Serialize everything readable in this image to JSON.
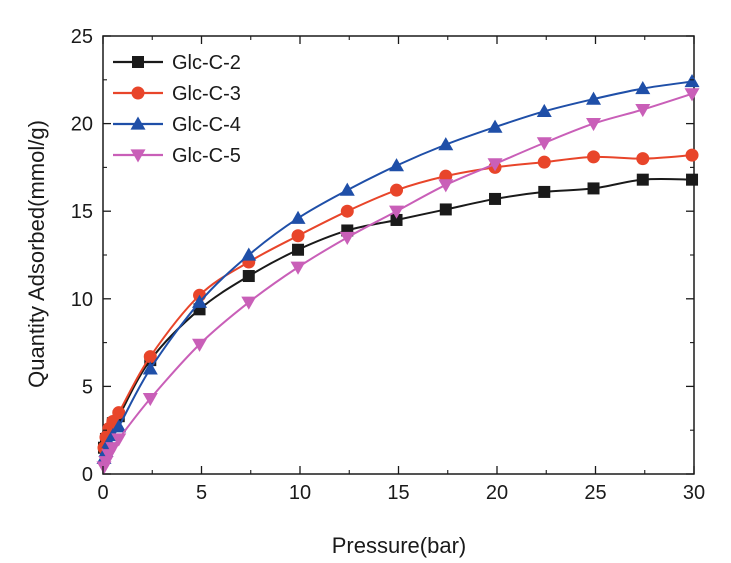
{
  "chart_data": {
    "type": "line",
    "title": "",
    "xlabel": "Pressure(bar)",
    "ylabel": "Quantity Adsorbed(mmol/g)",
    "xlim": [
      0,
      30
    ],
    "ylim": [
      0,
      25
    ],
    "xticks": [
      0,
      5,
      10,
      15,
      20,
      25,
      30
    ],
    "yticks": [
      0,
      5,
      10,
      15,
      20,
      25
    ],
    "grid": false,
    "legend_position": "top-left",
    "series": [
      {
        "name": "Glc-C-2",
        "color": "#1a1a1a",
        "marker": "square",
        "x": [
          0.05,
          0.15,
          0.3,
          0.5,
          0.8,
          2.4,
          4.9,
          7.4,
          9.9,
          12.4,
          14.9,
          17.4,
          19.9,
          22.4,
          24.9,
          27.4,
          29.9
        ],
        "y": [
          1.5,
          2.0,
          2.5,
          2.9,
          3.3,
          6.5,
          9.4,
          11.3,
          12.8,
          13.9,
          14.5,
          15.1,
          15.7,
          16.1,
          16.3,
          16.8,
          16.8
        ]
      },
      {
        "name": "Glc-C-3",
        "color": "#e8452a",
        "marker": "circle",
        "x": [
          0.05,
          0.15,
          0.3,
          0.5,
          0.8,
          2.4,
          4.9,
          7.4,
          9.9,
          12.4,
          14.9,
          17.4,
          19.9,
          22.4,
          24.9,
          27.4,
          29.9
        ],
        "y": [
          1.5,
          2.1,
          2.6,
          3.0,
          3.5,
          6.7,
          10.2,
          12.1,
          13.6,
          15.0,
          16.2,
          17.0,
          17.5,
          17.8,
          18.1,
          18.0,
          18.2
        ]
      },
      {
        "name": "Glc-C-4",
        "color": "#1f4fa8",
        "marker": "triangle-up",
        "x": [
          0.05,
          0.15,
          0.3,
          0.5,
          0.8,
          2.4,
          4.9,
          7.4,
          9.9,
          12.4,
          14.9,
          17.4,
          19.9,
          22.4,
          24.9,
          27.4,
          29.9
        ],
        "y": [
          0.9,
          1.3,
          1.8,
          2.2,
          2.7,
          6.0,
          9.8,
          12.5,
          14.6,
          16.2,
          17.6,
          18.8,
          19.8,
          20.7,
          21.4,
          22.0,
          22.4
        ]
      },
      {
        "name": "Glc-C-5",
        "color": "#c95fb8",
        "marker": "triangle-down",
        "x": [
          0.05,
          0.15,
          0.3,
          0.5,
          0.8,
          2.4,
          4.9,
          7.4,
          9.9,
          12.4,
          14.9,
          17.4,
          19.9,
          22.4,
          24.9,
          27.4,
          29.9
        ],
        "y": [
          0.4,
          0.7,
          1.1,
          1.5,
          2.0,
          4.3,
          7.4,
          9.8,
          11.8,
          13.5,
          15.0,
          16.5,
          17.7,
          18.9,
          20.0,
          20.8,
          21.7
        ]
      }
    ]
  }
}
